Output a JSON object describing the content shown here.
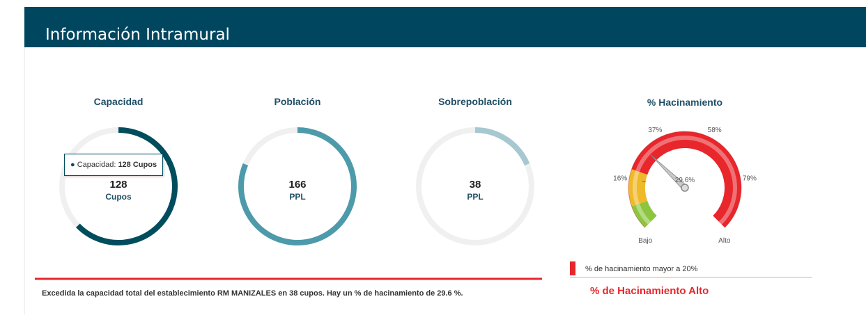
{
  "header": {
    "title": "Información Intramural"
  },
  "donuts": [
    {
      "title": "Capacidad",
      "value": 128,
      "unit": "Cupos",
      "color": "#004d5e"
    },
    {
      "title": "Población",
      "value": 166,
      "unit": "PPL",
      "color": "#4d9aab"
    },
    {
      "title": "Sobrepoblación",
      "value": 38,
      "unit": "PPL",
      "color": "#a6c8d0"
    }
  ],
  "tooltip": {
    "label": "Capacidad:",
    "value": "128 Cupos"
  },
  "gauge": {
    "title": "% Hacinamiento",
    "value": 29.6,
    "value_label": "29.6%",
    "range": [
      -5,
      100
    ],
    "ticks": [
      {
        "value": 16,
        "label": "16%"
      },
      {
        "value": 37,
        "label": "37%"
      },
      {
        "value": 58,
        "label": "58%"
      },
      {
        "value": 79,
        "label": "79%"
      }
    ],
    "start_label": "Bajo",
    "end_label": "Alto",
    "bands": [
      {
        "from": -5,
        "to": 5,
        "color": "#8cc63f"
      },
      {
        "from": 5,
        "to": 20,
        "color": "#f0b929"
      },
      {
        "from": 20,
        "to": 100,
        "color": "#e8262b"
      }
    ]
  },
  "legend": {
    "text": "% de hacinamiento mayor a 20%",
    "color": "#e8262b"
  },
  "status": "% de Hacinamiento Alto",
  "message": "Excedida la capacidad total del establecimiento RM MANIZALES en 38 cupos.  Hay un % de hacinamiento de 29.6 %."
}
